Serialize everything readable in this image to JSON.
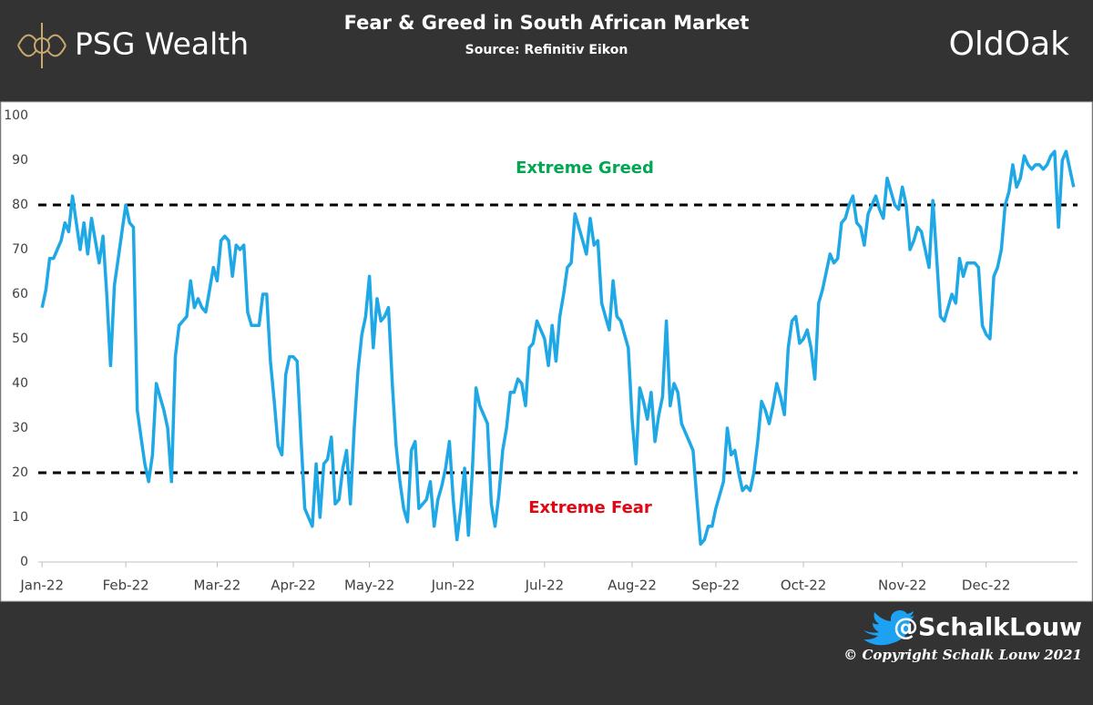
{
  "header": {
    "logo": "PSG Wealth",
    "brand": "OldOak"
  },
  "footer": {
    "handle": "@SchalkLouw",
    "copyright": "© Copyright Schalk Louw 2021"
  },
  "chart_data": {
    "type": "line",
    "title": "Fear & Greed in South African Market",
    "subtitle": "Source: Refinitiv Eikon",
    "series": [
      {
        "name": "Fear & Greed",
        "color": "#1fa8e6",
        "values": [
          57,
          61,
          68,
          68,
          70,
          72,
          76,
          74,
          82,
          76,
          70,
          76,
          69,
          77,
          72,
          67,
          73,
          60,
          44,
          62,
          68,
          74,
          80,
          76,
          75,
          34,
          28,
          22,
          18,
          24,
          40,
          37,
          34,
          30,
          18,
          46,
          53,
          54,
          55,
          63,
          57,
          59,
          57,
          56,
          61,
          66,
          63,
          72,
          73,
          72,
          64,
          71,
          70,
          71,
          56,
          53,
          53,
          53,
          60,
          60,
          45,
          36,
          26,
          24,
          42,
          46,
          46,
          45,
          28,
          12,
          10,
          8,
          22,
          10,
          22,
          23,
          28,
          13,
          14,
          21,
          25,
          13,
          30,
          43,
          51,
          55,
          64,
          48,
          59,
          54,
          55,
          57,
          40,
          26,
          18,
          12,
          9,
          25,
          27,
          12,
          13,
          14,
          18,
          8,
          14,
          17,
          21,
          27,
          14,
          5,
          12,
          21,
          6,
          20,
          39,
          35,
          33,
          31,
          13,
          8,
          15,
          25,
          30,
          38,
          38,
          41,
          40,
          35,
          48,
          49,
          54,
          52,
          50,
          44,
          53,
          45,
          55,
          60,
          66,
          67,
          78,
          75,
          72,
          69,
          77,
          71,
          72,
          58,
          55,
          52,
          63,
          55,
          54,
          51,
          48,
          32,
          22,
          39,
          36,
          32,
          38,
          27,
          33,
          37,
          54,
          35,
          40,
          38,
          31,
          29,
          27,
          25,
          14,
          4,
          5,
          8,
          8,
          12,
          15,
          18,
          30,
          24,
          25,
          20,
          16,
          17,
          16,
          20,
          27,
          36,
          34,
          31,
          35,
          40,
          37,
          33,
          48,
          54,
          55,
          49,
          50,
          52,
          48,
          41,
          58,
          61,
          65,
          69,
          67,
          68,
          76,
          77,
          80,
          82,
          76,
          75,
          71,
          78,
          80,
          82,
          79,
          77,
          86,
          83,
          80,
          79,
          84,
          80,
          70,
          72,
          75,
          74,
          70,
          66,
          81,
          68,
          55,
          54,
          57,
          60,
          58,
          68,
          64,
          67,
          67,
          67,
          66,
          53,
          51,
          50,
          64,
          66,
          70,
          80,
          83,
          89,
          84,
          86,
          91,
          89,
          88,
          89,
          89,
          88,
          89,
          91,
          92,
          75,
          90,
          92,
          88,
          84
        ]
      }
    ],
    "xlim": [
      -1,
      272
    ],
    "xticks": [
      {
        "value": 0,
        "label": "Jan-22"
      },
      {
        "value": 22,
        "label": "Feb-22"
      },
      {
        "value": 46,
        "label": "Mar-22"
      },
      {
        "value": 66,
        "label": "Apr-22"
      },
      {
        "value": 86,
        "label": "May-22"
      },
      {
        "value": 108,
        "label": "Jun-22"
      },
      {
        "value": 132,
        "label": "Jul-22"
      },
      {
        "value": 155,
        "label": "Aug-22"
      },
      {
        "value": 177,
        "label": "Sep-22"
      },
      {
        "value": 200,
        "label": "Oct-22"
      },
      {
        "value": 226,
        "label": "Nov-22"
      },
      {
        "value": 248,
        "label": "Dec-22"
      }
    ],
    "ylim": [
      0,
      100
    ],
    "yticks": [
      0,
      10,
      20,
      30,
      40,
      50,
      60,
      70,
      80,
      90,
      100
    ],
    "grid": false,
    "reference_lines": [
      80,
      20
    ],
    "annotations": [
      {
        "text": "Extreme Greed",
        "color": "#00a651"
      },
      {
        "text": "Extreme Fear",
        "color": "#e30613"
      }
    ]
  }
}
